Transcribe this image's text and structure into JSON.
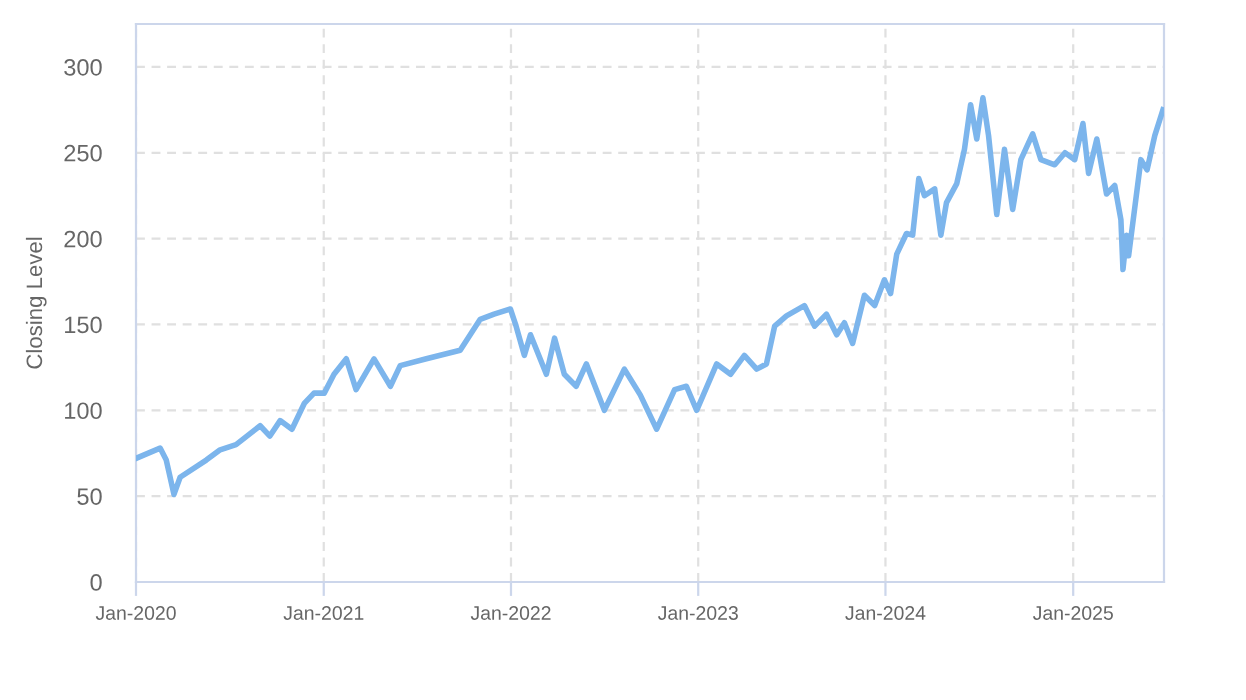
{
  "chart_data": {
    "type": "line",
    "ylabel": "Closing Level",
    "xlim": [
      "2020-01-01",
      "2025-06-27"
    ],
    "ylim": [
      0,
      325
    ],
    "xticks": [
      {
        "value": "2020-01-01",
        "label": "Jan-2020"
      },
      {
        "value": "2021-01-01",
        "label": "Jan-2021"
      },
      {
        "value": "2022-01-01",
        "label": "Jan-2022"
      },
      {
        "value": "2023-01-01",
        "label": "Jan-2023"
      },
      {
        "value": "2024-01-01",
        "label": "Jan-2024"
      },
      {
        "value": "2025-01-01",
        "label": "Jan-2025"
      }
    ],
    "yticks": [
      0,
      50,
      100,
      150,
      200,
      250,
      300
    ],
    "grid": true,
    "legend": false,
    "marker": "none",
    "line_style": "solid",
    "series": [
      {
        "color": "#7cb5ec",
        "x": [
          "2020-01-01",
          "2020-02-17",
          "2020-02-29",
          "2020-03-15",
          "2020-03-27",
          "2020-05-17",
          "2020-06-13",
          "2020-07-14",
          "2020-08-30",
          "2020-09-18",
          "2020-10-08",
          "2020-10-31",
          "2020-11-24",
          "2020-12-13",
          "2021-01-02",
          "2021-01-21",
          "2021-02-14",
          "2021-03-05",
          "2021-04-09",
          "2021-05-11",
          "2021-05-30",
          "2021-07-20",
          "2021-09-24",
          "2021-11-02",
          "2021-11-29",
          "2021-12-31",
          "2022-01-11",
          "2022-01-27",
          "2022-02-08",
          "2022-03-11",
          "2022-03-27",
          "2022-04-15",
          "2022-05-08",
          "2022-05-28",
          "2022-07-02",
          "2022-08-10",
          "2022-09-10",
          "2022-10-12",
          "2022-11-16",
          "2022-12-09",
          "2022-12-29",
          "2023-02-06",
          "2023-03-05",
          "2023-04-01",
          "2023-04-25",
          "2023-05-14",
          "2023-05-30",
          "2023-06-22",
          "2023-07-27",
          "2023-08-16",
          "2023-09-08",
          "2023-09-28",
          "2023-10-13",
          "2023-10-29",
          "2023-11-21",
          "2023-12-11",
          "2023-12-30",
          "2024-01-11",
          "2024-01-23",
          "2024-02-11",
          "2024-02-23",
          "2024-03-06",
          "2024-03-17",
          "2024-04-06",
          "2024-04-18",
          "2024-04-29",
          "2024-05-19",
          "2024-06-03",
          "2024-06-15",
          "2024-06-27",
          "2024-07-09",
          "2024-07-20",
          "2024-08-05",
          "2024-08-20",
          "2024-09-05",
          "2024-09-21",
          "2024-10-14",
          "2024-10-30",
          "2024-11-26",
          "2024-12-16",
          "2025-01-04",
          "2025-01-20",
          "2025-01-31",
          "2025-02-16",
          "2025-03-07",
          "2025-03-23",
          "2025-04-04",
          "2025-04-08",
          "2025-04-15",
          "2025-04-19",
          "2025-05-13",
          "2025-05-25",
          "2025-06-09",
          "2025-06-25"
        ],
        "values": [
          72,
          78,
          71,
          51,
          61,
          71,
          77,
          80,
          91,
          85,
          94,
          89,
          104,
          110,
          110,
          121,
          130,
          112,
          130,
          114,
          126,
          130,
          135,
          153,
          156,
          159,
          149,
          132,
          144,
          121,
          142,
          121,
          114,
          127,
          100,
          124,
          109,
          89,
          112,
          114,
          100,
          127,
          121,
          132,
          124,
          127,
          149,
          155,
          161,
          149,
          156,
          144,
          151,
          139,
          167,
          161,
          176,
          168,
          191,
          203,
          202,
          235,
          225,
          229,
          202,
          221,
          232,
          252,
          278,
          258,
          282,
          260,
          214,
          252,
          217,
          246,
          261,
          246,
          243,
          250,
          246,
          267,
          238,
          258,
          226,
          231,
          211,
          182,
          202,
          190,
          246,
          240,
          260,
          275
        ]
      }
    ]
  }
}
